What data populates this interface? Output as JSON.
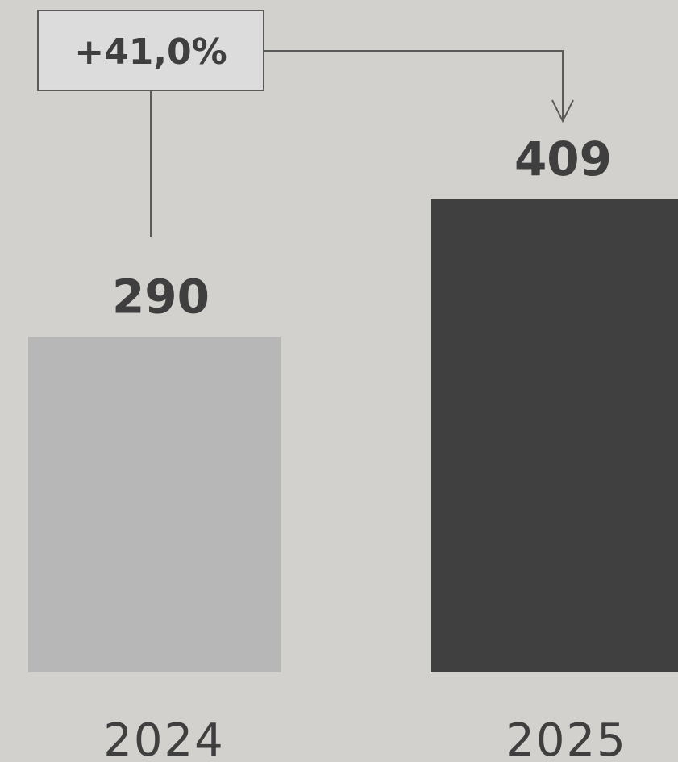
{
  "chart_data": {
    "type": "bar",
    "categories": [
      "2024",
      "2025"
    ],
    "values": [
      290,
      409
    ],
    "value_labels": [
      "290",
      "409"
    ],
    "bar_colors": [
      "#b7b7b7",
      "#404040"
    ],
    "annotation": {
      "label": "+41,0%",
      "from_category": "2024",
      "to_category": "2025"
    },
    "title": "",
    "xlabel": "",
    "ylabel": "",
    "ylim": [
      0,
      409
    ],
    "grid": false,
    "legend": "none"
  },
  "colors": {
    "background": "#d3d1cd",
    "text": "#3f3f3f",
    "connector": "#5a5a5a",
    "annotation_box_fill": "#dcdcdc"
  }
}
